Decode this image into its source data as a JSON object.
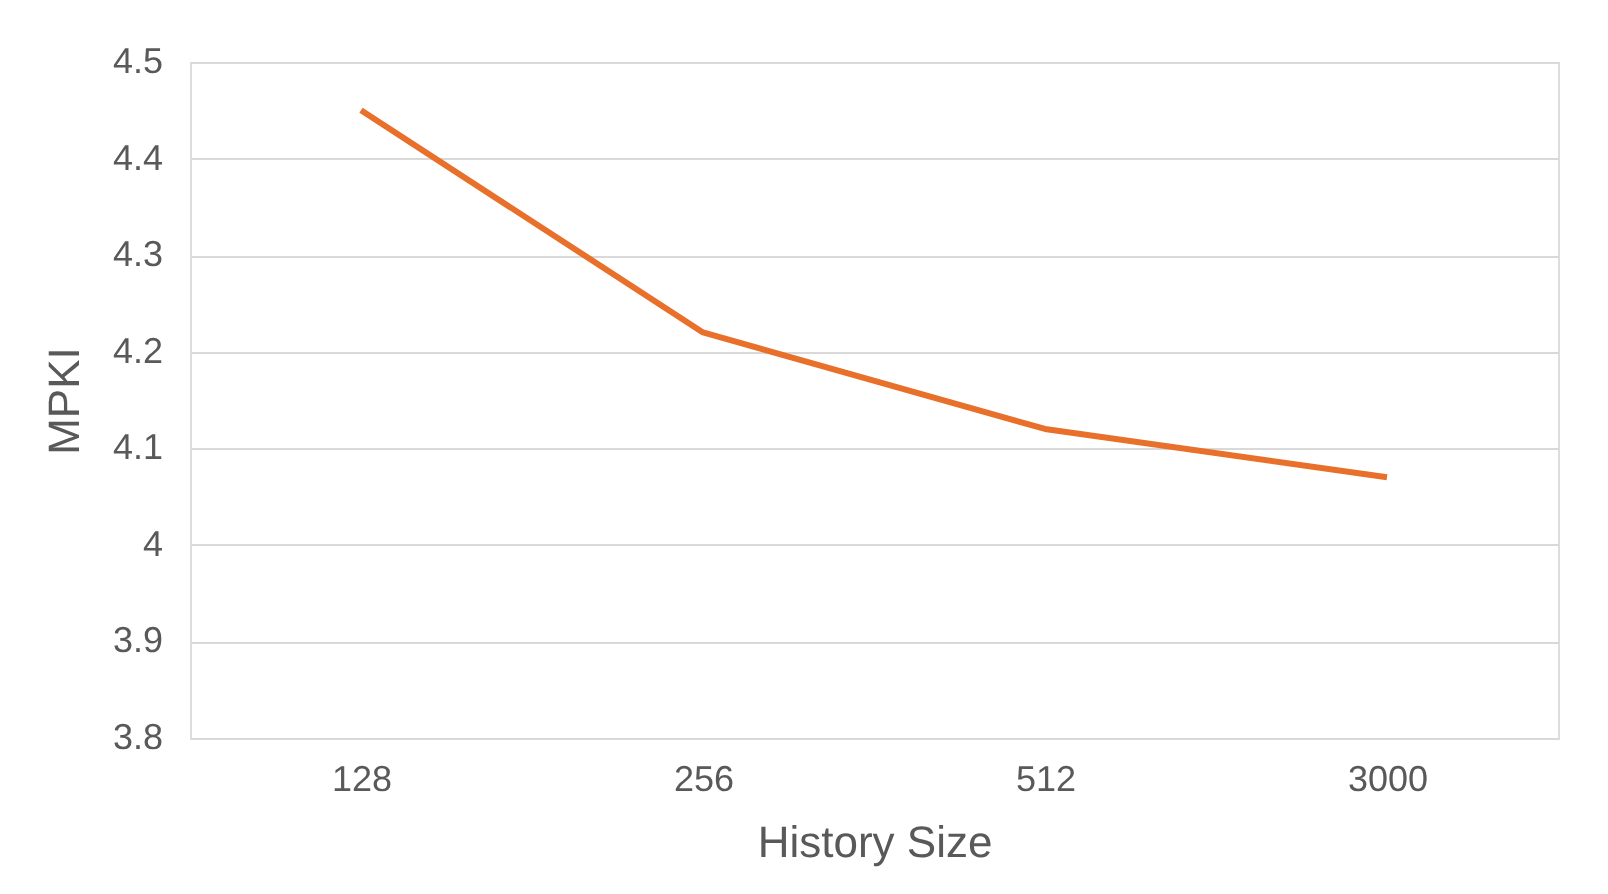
{
  "chart_data": {
    "type": "line",
    "xlabel": "History Size",
    "ylabel": "MPKI",
    "categories": [
      "128",
      "256",
      "512",
      "3000"
    ],
    "series": [
      {
        "color": "#e8702a",
        "values": [
          4.45,
          4.22,
          4.12,
          4.07
        ]
      }
    ],
    "ylim": [
      3.8,
      4.5
    ],
    "yticks": [
      3.8,
      3.9,
      4,
      4.1,
      4.2,
      4.3,
      4.4,
      4.5
    ],
    "grid": "y",
    "marker": "none",
    "line_style": "solid"
  }
}
